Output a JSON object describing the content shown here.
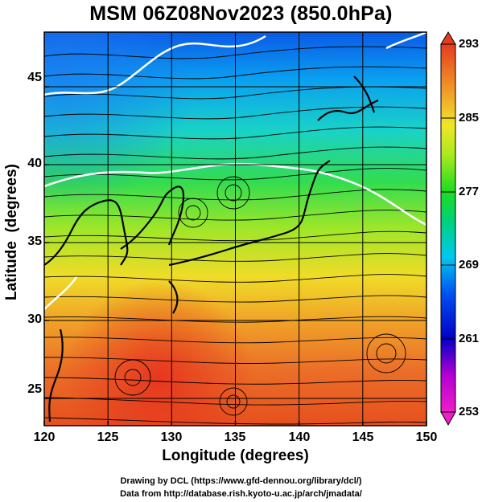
{
  "title": "MSM 06Z08Nov2023 (850.0hPa)",
  "map": {
    "x_axis_label": "Longitude (degrees)",
    "y_axis_label": "Latitude  (degrees)",
    "lon_range": [
      120,
      150
    ],
    "lat_range": [
      22.5,
      47.5
    ],
    "lon_ticks": [
      "120",
      "125",
      "130",
      "135",
      "140",
      "145",
      "150"
    ],
    "lat_ticks": [
      "45",
      "40",
      "35",
      "30",
      "25"
    ],
    "grid": true,
    "fields": [
      "temperature (shaded)",
      "wind streamlines",
      "coastlines"
    ]
  },
  "colorbar": {
    "ticks": [
      "293",
      "285",
      "277",
      "269",
      "261",
      "253"
    ],
    "range": [
      253,
      293
    ],
    "palette": [
      "#f01ec8",
      "#b400d2",
      "#0000c8",
      "#0050f0",
      "#00c8f0",
      "#00d27a",
      "#1edc1e",
      "#aaea1e",
      "#f0e628",
      "#f09628",
      "#e63c1e"
    ]
  },
  "credits": {
    "line1": "Drawing by DCL (https://www.gfd-dennou.org/library/dcl/)",
    "line2": "Data from http://database.rish.kyoto-u.ac.jp/arch/jmadata/"
  }
}
